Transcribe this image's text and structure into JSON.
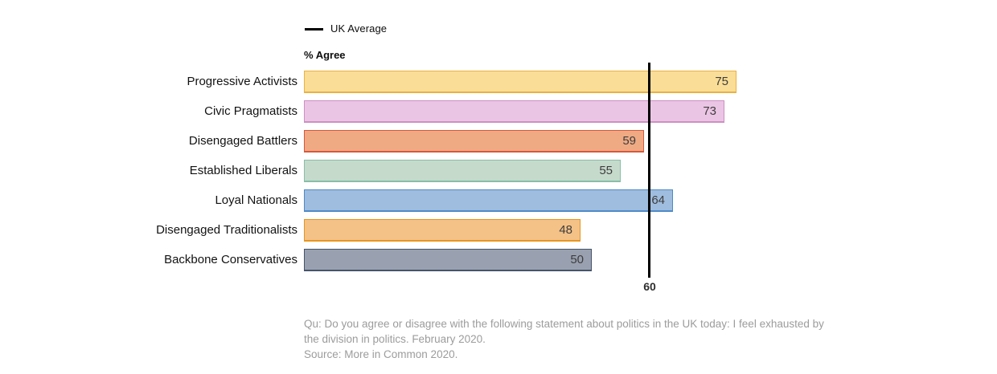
{
  "legend": {
    "label": "UK Average"
  },
  "axis_label": "% Agree",
  "average": {
    "value": 60,
    "label": "60"
  },
  "footnote": {
    "question": "Qu: Do you agree or disagree with the following statement about politics in the UK today: I feel exhausted by the division in politics. February 2020.",
    "source": "Source: More in Common 2020."
  },
  "colors": {
    "average_line": "#000000",
    "value_text": "#3d3d3d",
    "label_text": "#121212",
    "footnote_text": "#9c9c9c"
  },
  "chart_data": {
    "type": "bar",
    "orientation": "horizontal",
    "title": "",
    "xlabel": "",
    "ylabel": "% Agree",
    "categories": [
      "Progressive Activists",
      "Civic Pragmatists",
      "Disengaged Battlers",
      "Established Liberals",
      "Loyal Nationals",
      "Disengaged Traditionalists",
      "Backbone Conservatives"
    ],
    "values": [
      75,
      73,
      59,
      55,
      64,
      48,
      50
    ],
    "bar_fill_colors": [
      "#fadd96",
      "#ebc5e4",
      "#efaa84",
      "#c6dacc",
      "#9fbdde",
      "#f4c187",
      "#99a1b0"
    ],
    "bar_border_colors": [
      "#ebb140",
      "#ce8fc4",
      "#d9573c",
      "#86bfa7",
      "#4e8ac8",
      "#e5961f",
      "#44546a"
    ],
    "reference_line": {
      "label": "UK Average",
      "value": 60
    },
    "xlim": [
      0,
      90
    ],
    "grid": false,
    "legend_position": "top",
    "annotations": [
      "60"
    ]
  }
}
